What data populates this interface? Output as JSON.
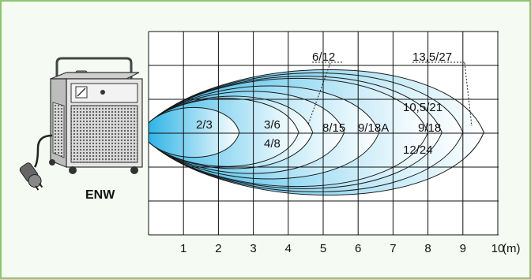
{
  "product": {
    "name": "ENW",
    "accent_color": "#8cc56e"
  },
  "diagram": {
    "x_axis": {
      "ticks": [
        "1",
        "2",
        "3",
        "4",
        "5",
        "6",
        "7",
        "8",
        "9",
        "10"
      ],
      "unit": "(m)"
    },
    "zones": [
      {
        "label": "2/3",
        "reach_m": 2.6
      },
      {
        "label": "3/6",
        "reach_m": 4.3
      },
      {
        "label": "4/8",
        "reach_m": 4.3
      },
      {
        "label": "6/12",
        "reach_m": 4.7
      },
      {
        "label": "8/15",
        "reach_m": 5.6
      },
      {
        "label": "9/18A",
        "reach_m": 6.6
      },
      {
        "label": "9/18",
        "reach_m": 8.0
      },
      {
        "label": "10,5/21",
        "reach_m": 8.4
      },
      {
        "label": "12/24",
        "reach_m": 9.0
      },
      {
        "label": "13,5/27",
        "reach_m": 9.6
      }
    ],
    "fill_colors": [
      "#1aa7dc",
      "#ffffff"
    ]
  }
}
